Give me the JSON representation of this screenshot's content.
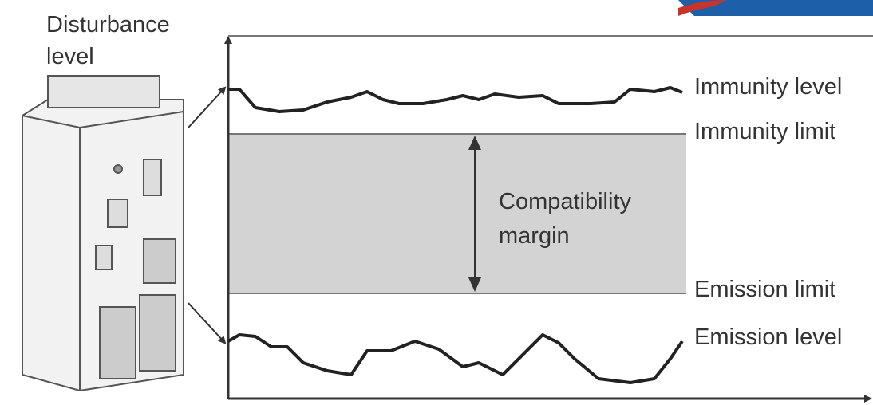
{
  "axis_label": {
    "lines": [
      "Disturbance",
      "level"
    ]
  },
  "labels": {
    "immunity_level": "Immunity level",
    "immunity_limit": "Immunity limit",
    "emission_limit": "Emission limit",
    "emission_level": "Emission level"
  },
  "margin_label": {
    "lines": [
      "Compatibility",
      "margin"
    ]
  }
}
